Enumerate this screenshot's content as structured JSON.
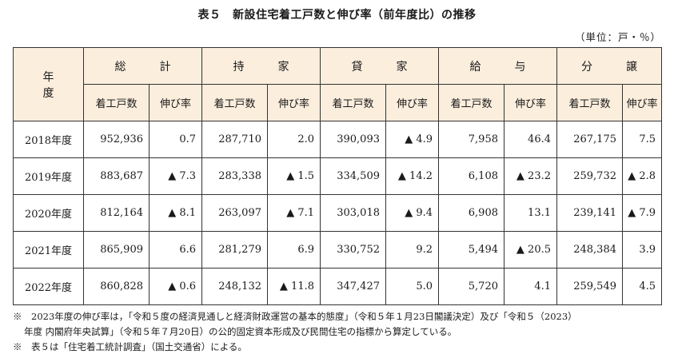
{
  "title": "表５　新設住宅着工戸数と伸び率（前年度比）の推移",
  "unit": "（単位：戸・％）",
  "table": {
    "year_header": "年　度",
    "groups": [
      "総　計",
      "持　家",
      "貸　家",
      "給　与",
      "分　譲"
    ],
    "sub_headers": [
      "着工戸数",
      "伸び率"
    ],
    "rows": [
      {
        "year": "2018年度",
        "cells": [
          "952,936",
          "0.7",
          "287,710",
          "2.0",
          "390,093",
          "▲ 4.9",
          "7,958",
          "46.4",
          "267,175",
          "7.5"
        ]
      },
      {
        "year": "2019年度",
        "cells": [
          "883,687",
          "▲ 7.3",
          "283,338",
          "▲ 1.5",
          "334,509",
          "▲ 14.2",
          "6,108",
          "▲ 23.2",
          "259,732",
          "▲ 2.8"
        ]
      },
      {
        "year": "2020年度",
        "cells": [
          "812,164",
          "▲ 8.1",
          "263,097",
          "▲ 7.1",
          "303,018",
          "▲ 9.4",
          "6,908",
          "13.1",
          "239,141",
          "▲ 7.9"
        ]
      },
      {
        "year": "2021年度",
        "cells": [
          "865,909",
          "6.6",
          "281,279",
          "6.9",
          "330,752",
          "9.2",
          "5,494",
          "▲ 20.5",
          "248,384",
          "3.9"
        ]
      },
      {
        "year": "2022年度",
        "cells": [
          "860,828",
          "▲ 0.6",
          "248,132",
          "▲ 11.8",
          "347,427",
          "5.0",
          "5,720",
          "4.1",
          "259,549",
          "4.5"
        ]
      }
    ]
  },
  "notes": {
    "line1": "※　2023年度の伸び率は，「令和５度の経済見通しと経済財政運営の基本的態度」（令和５年１月23日閣議決定）及び「令和５（2023）",
    "line2": "年度 内閣府年央試算」（令和５年７月20日）の公的固定資本形成及び民間住宅の指標から算定している。",
    "line3": "※　表５は「住宅着工統計調査」（国土交通省）による。"
  },
  "colors": {
    "header_bg": "#fbeedd",
    "border": "#333333",
    "text": "#1a1a1a"
  }
}
